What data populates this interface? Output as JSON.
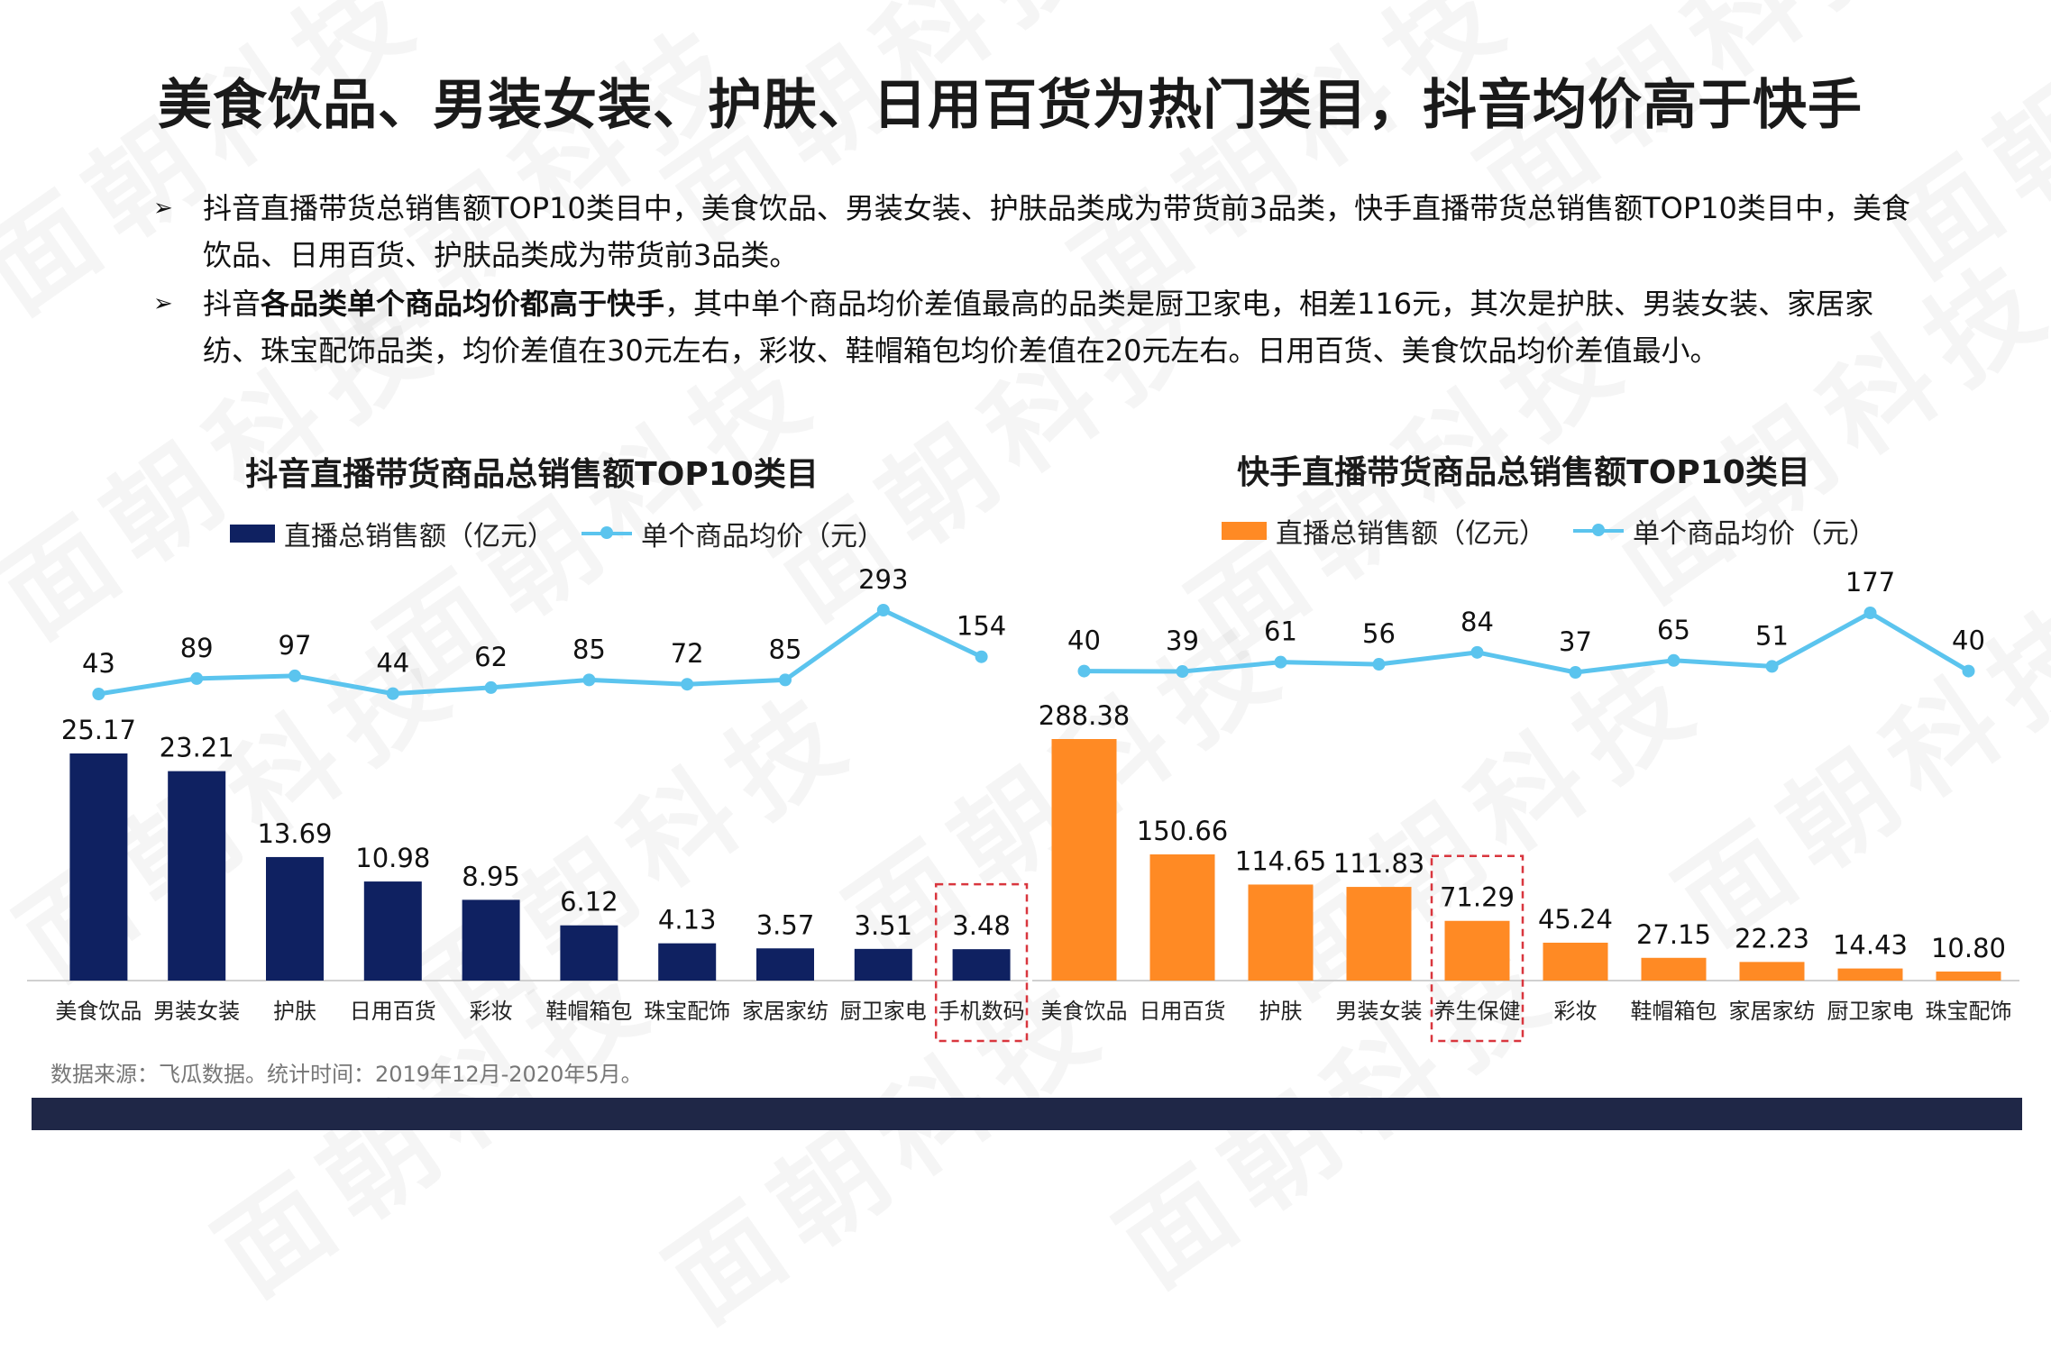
{
  "page": {
    "title": "美食饮品、男装女装、护肤、日用百货为热门类目，抖音均价高于快手",
    "bullets": [
      {
        "marker": "➢",
        "pre": "抖音直播带货总销售额TOP10类目中，美食饮品、男装女装、护肤品类成为带货前3品类，快手直播带货总销售额TOP10类目中，美食饮品、日用百货、护肤品类成为带货前3品类。",
        "bold": "",
        "post": ""
      },
      {
        "marker": "➢",
        "pre": "抖音",
        "bold": "各品类单个商品均价都高于快手",
        "post": "，其中单个商品均价差值最高的品类是厨卫家电，相差116元，其次是护肤、男装女装、家居家纺、珠宝配饰品类，均价差值在30元左右，彩妆、鞋帽箱包均价差值在20元左右。日用百货、美食饮品均价差值最小。"
      }
    ],
    "source": "数据来源：飞瓜数据。统计时间：2019年12月-2020年5月。",
    "watermark": "面朝科技"
  },
  "colors": {
    "douyin_bar": "#0f2161",
    "kuaishou_bar": "#ff8a24",
    "line": "#5bc4ee",
    "highlight_box": "#d9363e",
    "footer": "#1f2747"
  },
  "chart_data": [
    {
      "type": "bar",
      "title": "抖音直播带货商品总销售额TOP10类目",
      "legend": [
        "直播总销售额（亿元）",
        "单个商品均价（元）"
      ],
      "categories": [
        "美食饮品",
        "男装女装",
        "护肤",
        "日用百货",
        "彩妆",
        "鞋帽箱包",
        "珠宝配饰",
        "家居家纺",
        "厨卫家电",
        "手机数码"
      ],
      "series": [
        {
          "name": "直播总销售额（亿元）",
          "type": "bar",
          "values": [
            25.17,
            23.21,
            13.69,
            10.98,
            8.95,
            6.12,
            4.13,
            3.57,
            3.51,
            3.48
          ],
          "labels": [
            "25.17",
            "23.21",
            "13.69",
            "10.98",
            "8.95",
            "6.12",
            "4.13",
            "3.57",
            "3.51",
            "3.48"
          ]
        },
        {
          "name": "单个商品均价（元）",
          "type": "line",
          "values": [
            43,
            89,
            97,
            44,
            62,
            85,
            72,
            85,
            293,
            154
          ],
          "labels": [
            "43",
            "89",
            "97",
            "44",
            "62",
            "85",
            "72",
            "85",
            "293",
            "154"
          ]
        }
      ],
      "highlighted_category": "手机数码"
    },
    {
      "type": "bar",
      "title": "快手直播带货商品总销售额TOP10类目",
      "legend": [
        "直播总销售额（亿元）",
        "单个商品均价（元）"
      ],
      "categories": [
        "美食饮品",
        "日用百货",
        "护肤",
        "男装女装",
        "养生保健",
        "彩妆",
        "鞋帽箱包",
        "家居家纺",
        "厨卫家电",
        "珠宝配饰"
      ],
      "series": [
        {
          "name": "直播总销售额（亿元）",
          "type": "bar",
          "values": [
            288.38,
            150.66,
            114.65,
            111.83,
            71.29,
            45.24,
            27.15,
            22.23,
            14.43,
            10.8
          ],
          "labels": [
            "288.38",
            "150.66",
            "114.65",
            "111.83",
            "71.29",
            "45.24",
            "27.15",
            "22.23",
            "14.43",
            "10.80"
          ]
        },
        {
          "name": "单个商品均价（元）",
          "type": "line",
          "values": [
            40,
            39,
            61,
            56,
            84,
            37,
            65,
            51,
            177,
            40
          ],
          "labels": [
            "40",
            "39",
            "61",
            "56",
            "84",
            "37",
            "65",
            "51",
            "177",
            "40"
          ]
        }
      ],
      "highlighted_category": "养生保健"
    }
  ]
}
